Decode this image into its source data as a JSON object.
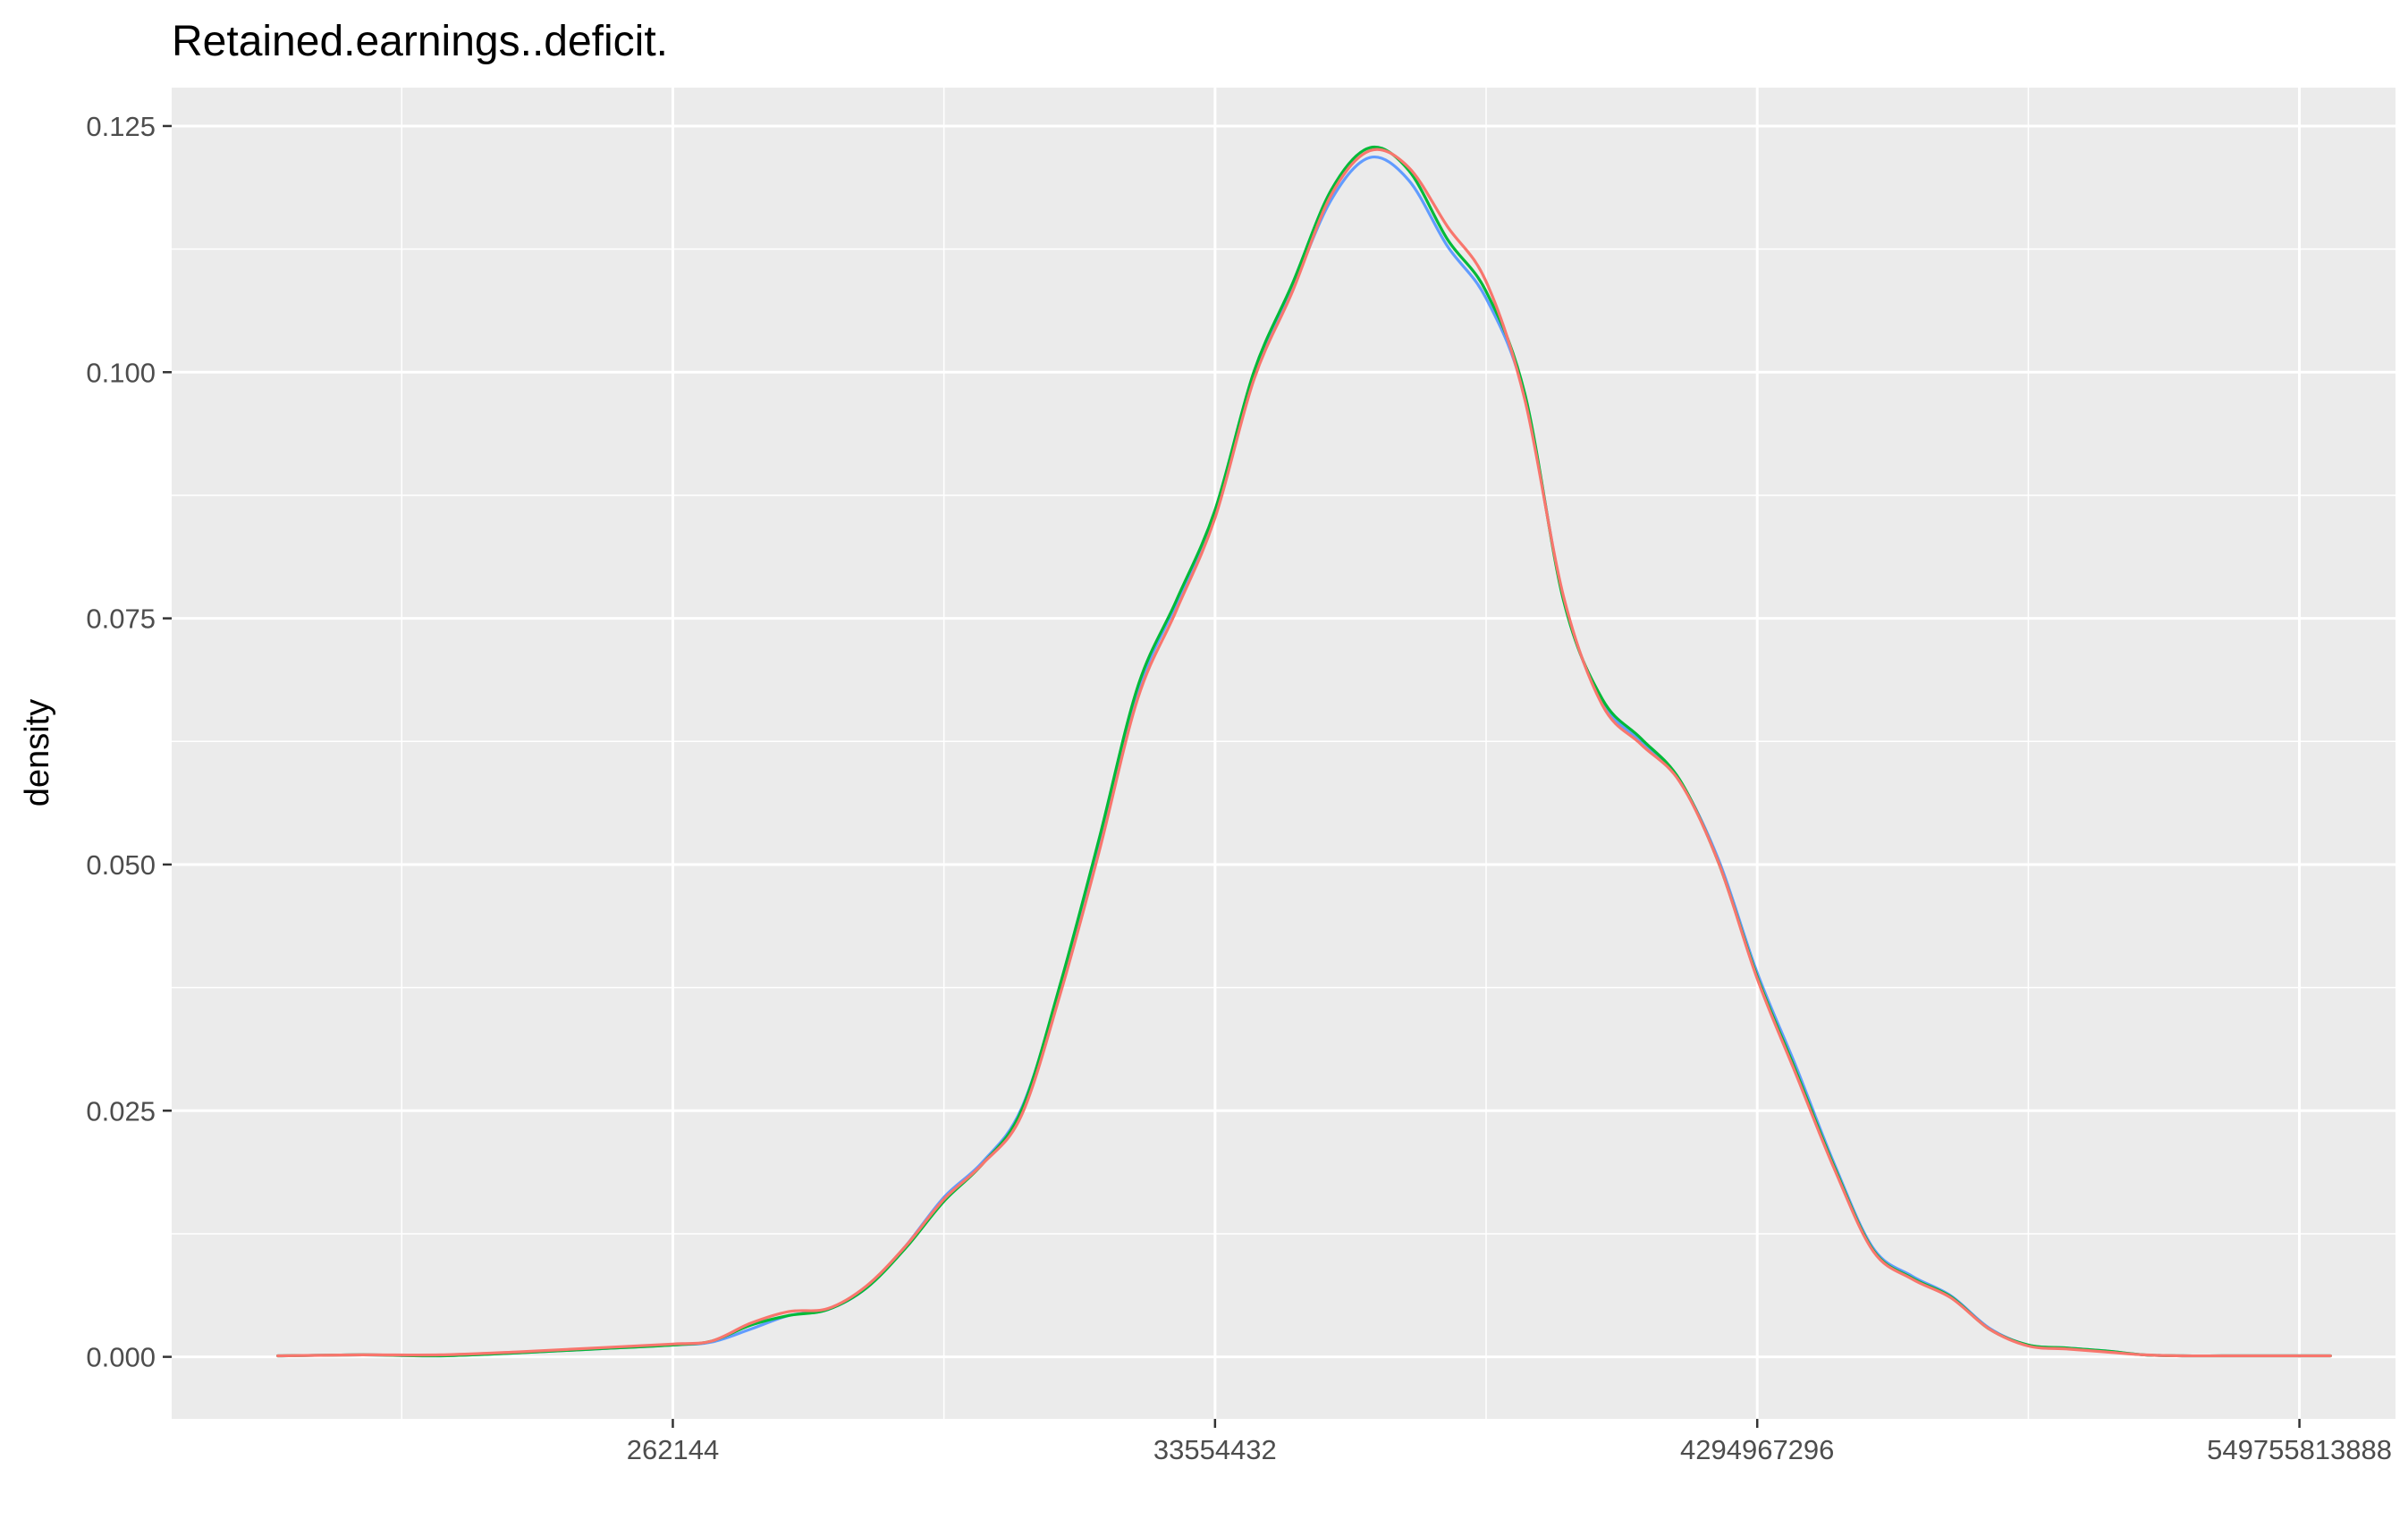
{
  "chart_data": {
    "type": "line",
    "title": "Retained.earnings..deficit.",
    "xlabel": "",
    "ylabel": "density",
    "x_scale": "log2",
    "x_ticks": [
      {
        "value": 18,
        "label": "262144"
      },
      {
        "value": 25,
        "label": "33554432"
      },
      {
        "value": 32,
        "label": "4294967296"
      },
      {
        "value": 39,
        "label": "549755813888"
      }
    ],
    "y_ticks": [
      {
        "value": 0.0,
        "label": "0.000"
      },
      {
        "value": 0.025,
        "label": "0.025"
      },
      {
        "value": 0.05,
        "label": "0.050"
      },
      {
        "value": 0.075,
        "label": "0.075"
      },
      {
        "value": 0.1,
        "label": "0.100"
      },
      {
        "value": 0.125,
        "label": "0.125"
      }
    ],
    "xlim": [
      11.53,
      40.24
    ],
    "ylim": [
      -0.0063,
      0.1289
    ],
    "grid": true,
    "legend": "none",
    "background": "#ebebeb",
    "series": [
      {
        "color": "#619cff",
        "x": [
          12.9,
          14.0,
          15.0,
          16.0,
          17.0,
          18.0,
          18.5,
          19.0,
          19.5,
          20.0,
          20.5,
          21.0,
          21.5,
          22.0,
          22.5,
          23.0,
          23.5,
          24.0,
          24.5,
          25.0,
          25.5,
          26.0,
          26.5,
          27.0,
          27.5,
          28.0,
          28.5,
          29.0,
          29.5,
          30.0,
          30.5,
          31.0,
          31.5,
          32.0,
          32.5,
          33.0,
          33.5,
          34.0,
          34.5,
          35.0,
          35.5,
          36.0,
          36.5,
          37.0,
          37.5,
          38.0,
          38.5,
          39.0,
          39.4
        ],
        "y": [
          0.0001,
          0.0002,
          0.0001,
          0.0004,
          0.0008,
          0.0012,
          0.0015,
          0.0028,
          0.0042,
          0.0048,
          0.007,
          0.0112,
          0.0162,
          0.0198,
          0.0252,
          0.0375,
          0.052,
          0.0675,
          0.0765,
          0.0855,
          0.0995,
          0.1085,
          0.1175,
          0.1218,
          0.1195,
          0.1128,
          0.1075,
          0.0975,
          0.077,
          0.0665,
          0.0625,
          0.0585,
          0.0505,
          0.039,
          0.0295,
          0.0195,
          0.011,
          0.0082,
          0.0062,
          0.0029,
          0.0012,
          0.0009,
          0.0006,
          0.0002,
          0.0001,
          0.0001,
          0.0001,
          0.0001,
          0.0001
        ]
      },
      {
        "color": "#00ba38",
        "x": [
          12.9,
          14.0,
          15.0,
          16.0,
          17.0,
          18.0,
          18.5,
          19.0,
          19.5,
          20.0,
          20.5,
          21.0,
          21.5,
          22.0,
          22.5,
          23.0,
          23.5,
          24.0,
          24.5,
          25.0,
          25.5,
          26.0,
          26.5,
          27.0,
          27.5,
          28.0,
          28.5,
          29.0,
          29.5,
          30.0,
          30.5,
          31.0,
          31.5,
          32.0,
          32.5,
          33.0,
          33.5,
          34.0,
          34.5,
          35.0,
          35.5,
          36.0,
          36.5,
          37.0,
          37.5,
          38.0,
          38.5,
          39.0,
          39.4
        ],
        "y": [
          0.0001,
          0.0002,
          0.0001,
          0.0004,
          0.0008,
          0.0012,
          0.0016,
          0.0032,
          0.0042,
          0.0048,
          0.007,
          0.011,
          0.0158,
          0.0196,
          0.025,
          0.0378,
          0.0525,
          0.068,
          0.0768,
          0.086,
          0.1,
          0.109,
          0.1185,
          0.1228,
          0.1205,
          0.1135,
          0.1082,
          0.0978,
          0.0768,
          0.0668,
          0.0628,
          0.0586,
          0.0502,
          0.0386,
          0.029,
          0.0192,
          0.0108,
          0.008,
          0.0061,
          0.0028,
          0.0012,
          0.0009,
          0.0006,
          0.0002,
          0.0001,
          0.0001,
          0.0001,
          0.0001,
          0.0001
        ]
      },
      {
        "color": "#f8766d",
        "x": [
          12.9,
          14.0,
          15.0,
          16.0,
          17.0,
          18.0,
          18.5,
          19.0,
          19.5,
          20.0,
          20.5,
          21.0,
          21.5,
          22.0,
          22.5,
          23.0,
          23.5,
          24.0,
          24.5,
          25.0,
          25.5,
          26.0,
          26.5,
          27.0,
          27.5,
          28.0,
          28.5,
          29.0,
          29.5,
          30.0,
          30.5,
          31.0,
          31.5,
          32.0,
          32.5,
          33.0,
          33.5,
          34.0,
          34.5,
          35.0,
          35.5,
          36.0,
          36.5,
          37.0,
          37.5,
          38.0,
          38.5,
          39.0,
          39.4
        ],
        "y": [
          0.0001,
          0.0002,
          0.0002,
          0.0005,
          0.0009,
          0.0013,
          0.0016,
          0.0034,
          0.0046,
          0.0049,
          0.0072,
          0.0112,
          0.016,
          0.0196,
          0.0245,
          0.0368,
          0.0512,
          0.0668,
          0.0758,
          0.0852,
          0.0992,
          0.1082,
          0.118,
          0.1225,
          0.1208,
          0.1148,
          0.1092,
          0.0972,
          0.0772,
          0.0662,
          0.0622,
          0.0584,
          0.0502,
          0.0384,
          0.0287,
          0.019,
          0.0107,
          0.0079,
          0.006,
          0.0028,
          0.0011,
          0.0008,
          0.0005,
          0.0002,
          0.0001,
          0.0001,
          0.0001,
          0.0001,
          0.0001
        ]
      }
    ]
  }
}
